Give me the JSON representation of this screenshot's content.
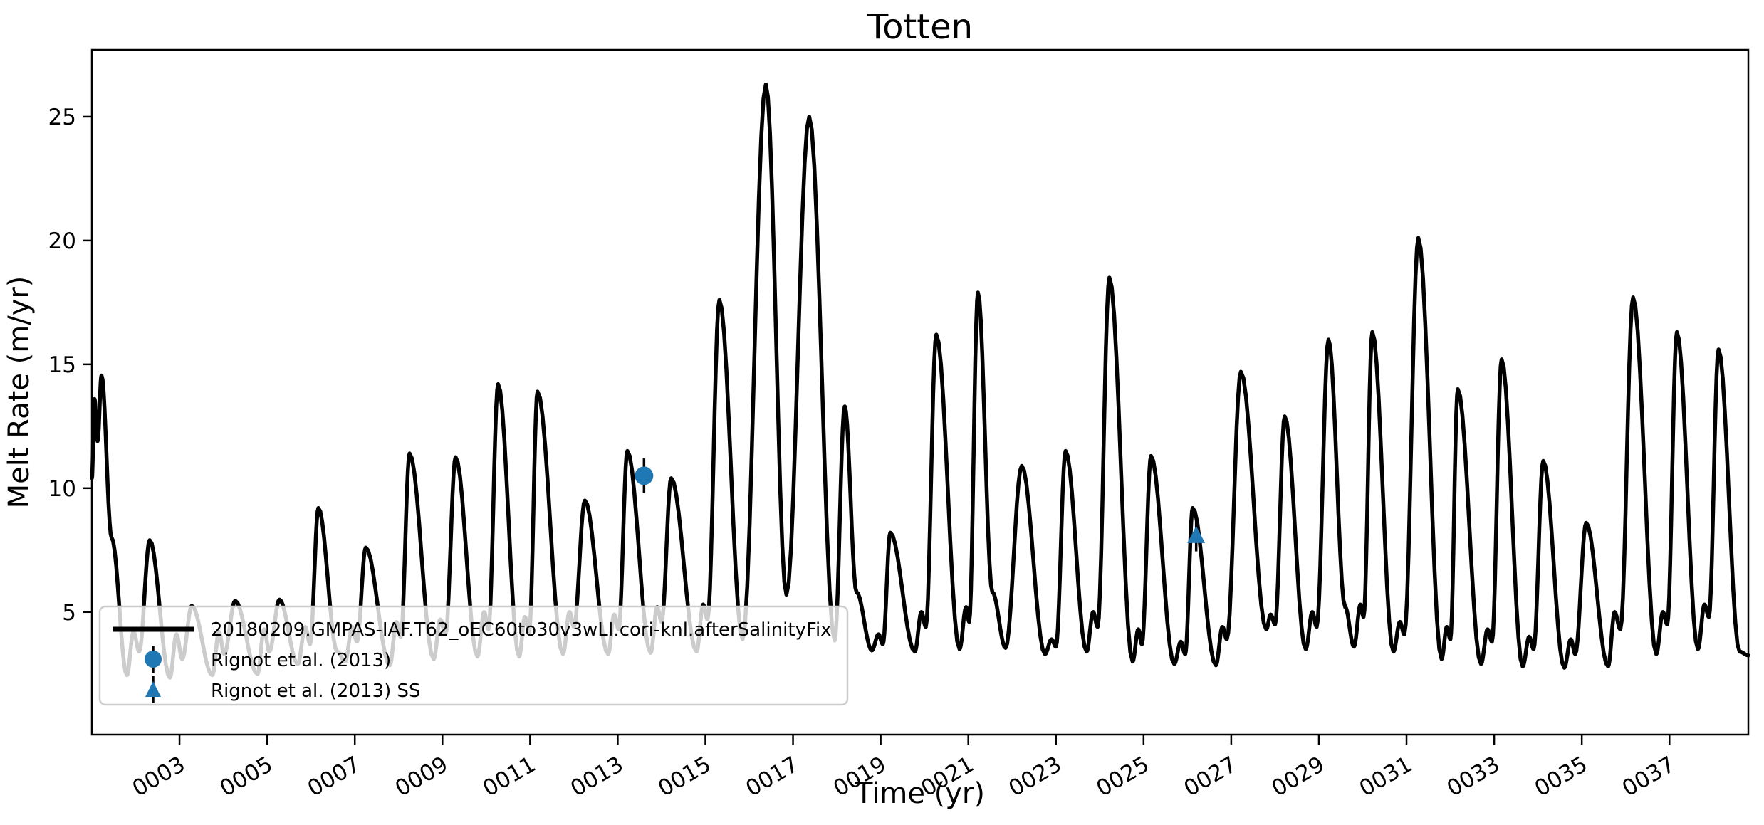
{
  "chart_data": {
    "type": "line",
    "title": "Totten",
    "xlabel": "Time (yr)",
    "ylabel": "Melt Rate (m/yr)",
    "xlim": [
      1.0,
      38.8
    ],
    "ylim": [
      0.05,
      27.7
    ],
    "grid": false,
    "legend_position": "lower left",
    "axis_color": "#000000",
    "x_ticks": [
      {
        "value": 3,
        "label": "0003"
      },
      {
        "value": 5,
        "label": "0005"
      },
      {
        "value": 7,
        "label": "0007"
      },
      {
        "value": 9,
        "label": "0009"
      },
      {
        "value": 11,
        "label": "0011"
      },
      {
        "value": 13,
        "label": "0013"
      },
      {
        "value": 15,
        "label": "0015"
      },
      {
        "value": 17,
        "label": "0017"
      },
      {
        "value": 19,
        "label": "0019"
      },
      {
        "value": 21,
        "label": "0021"
      },
      {
        "value": 23,
        "label": "0023"
      },
      {
        "value": 25,
        "label": "0025"
      },
      {
        "value": 27,
        "label": "0027"
      },
      {
        "value": 29,
        "label": "0029"
      },
      {
        "value": 31,
        "label": "0031"
      },
      {
        "value": 33,
        "label": "0033"
      },
      {
        "value": 35,
        "label": "0035"
      },
      {
        "value": 37,
        "label": "0037"
      }
    ],
    "y_ticks": [
      {
        "value": 5,
        "label": "5"
      },
      {
        "value": 10,
        "label": "10"
      },
      {
        "value": 15,
        "label": "15"
      },
      {
        "value": 20,
        "label": "20"
      },
      {
        "value": 25,
        "label": "25"
      }
    ],
    "series": [
      {
        "name": "20180209.GMPAS-IAF.T62_oEC60to30v3wLI.cori-knl.afterSalinityFix",
        "color": "#000000",
        "line_width": 5.5,
        "annual_peaks_note": "sharp seasonal peaks; [year, melt rate m/yr] keypoints traced from plot",
        "keypoints": [
          [
            1.0,
            10.4
          ],
          [
            1.06,
            13.6
          ],
          [
            1.13,
            11.9
          ],
          [
            1.22,
            14.55
          ],
          [
            1.45,
            8.0
          ],
          [
            1.8,
            2.45
          ],
          [
            1.95,
            4.2
          ],
          [
            2.08,
            3.4
          ],
          [
            2.32,
            7.9
          ],
          [
            2.78,
            2.35
          ],
          [
            2.93,
            4.1
          ],
          [
            3.06,
            3.1
          ],
          [
            3.28,
            5.25
          ],
          [
            3.75,
            2.45
          ],
          [
            3.9,
            4.2
          ],
          [
            4.02,
            3.3
          ],
          [
            4.27,
            5.45
          ],
          [
            4.78,
            2.5
          ],
          [
            4.93,
            4.3
          ],
          [
            5.05,
            3.4
          ],
          [
            5.28,
            5.5
          ],
          [
            5.7,
            2.9
          ],
          [
            5.87,
            4.4
          ],
          [
            5.98,
            3.7
          ],
          [
            6.17,
            9.2
          ],
          [
            6.6,
            3.4
          ],
          [
            6.78,
            3.0
          ],
          [
            6.94,
            4.4
          ],
          [
            7.05,
            3.8
          ],
          [
            7.25,
            7.6
          ],
          [
            7.8,
            2.85
          ],
          [
            7.95,
            4.6
          ],
          [
            8.05,
            4.0
          ],
          [
            8.25,
            11.4
          ],
          [
            8.8,
            3.1
          ],
          [
            8.95,
            4.7
          ],
          [
            9.07,
            4.1
          ],
          [
            9.3,
            11.25
          ],
          [
            9.8,
            3.2
          ],
          [
            9.95,
            5.0
          ],
          [
            10.05,
            4.3
          ],
          [
            10.27,
            14.2
          ],
          [
            10.75,
            3.2
          ],
          [
            10.88,
            4.8
          ],
          [
            10.98,
            4.2
          ],
          [
            11.17,
            13.9
          ],
          [
            11.75,
            3.3
          ],
          [
            11.9,
            5.0
          ],
          [
            12.0,
            4.4
          ],
          [
            12.25,
            9.5
          ],
          [
            12.78,
            3.3
          ],
          [
            12.92,
            4.9
          ],
          [
            13.02,
            4.3
          ],
          [
            13.22,
            11.5
          ],
          [
            13.75,
            3.35
          ],
          [
            13.9,
            5.2
          ],
          [
            14.0,
            4.6
          ],
          [
            14.22,
            10.4
          ],
          [
            14.8,
            3.4
          ],
          [
            14.95,
            5.3
          ],
          [
            15.05,
            4.7
          ],
          [
            15.32,
            17.6
          ],
          [
            15.85,
            3.9
          ],
          [
            16.38,
            26.3
          ],
          [
            16.85,
            5.7
          ],
          [
            17.37,
            25.0
          ],
          [
            17.95,
            3.85
          ],
          [
            18.18,
            13.3
          ],
          [
            18.45,
            5.8
          ],
          [
            18.8,
            3.45
          ],
          [
            18.95,
            4.1
          ],
          [
            19.05,
            3.7
          ],
          [
            19.22,
            8.2
          ],
          [
            19.78,
            3.4
          ],
          [
            19.93,
            5.0
          ],
          [
            20.03,
            4.4
          ],
          [
            20.27,
            16.2
          ],
          [
            20.8,
            3.5
          ],
          [
            20.95,
            5.2
          ],
          [
            21.02,
            4.6
          ],
          [
            21.22,
            17.9
          ],
          [
            21.55,
            5.8
          ],
          [
            21.85,
            3.55
          ],
          [
            22.22,
            10.9
          ],
          [
            22.75,
            3.3
          ],
          [
            22.9,
            3.9
          ],
          [
            23.0,
            3.6
          ],
          [
            23.22,
            11.5
          ],
          [
            23.7,
            3.4
          ],
          [
            23.85,
            5.0
          ],
          [
            23.95,
            4.4
          ],
          [
            24.22,
            18.5
          ],
          [
            24.75,
            3.0
          ],
          [
            24.88,
            4.3
          ],
          [
            24.96,
            3.7
          ],
          [
            25.17,
            11.3
          ],
          [
            25.7,
            2.9
          ],
          [
            25.85,
            3.8
          ],
          [
            25.95,
            3.3
          ],
          [
            26.12,
            9.2
          ],
          [
            26.65,
            2.85
          ],
          [
            26.8,
            4.4
          ],
          [
            26.9,
            3.9
          ],
          [
            27.22,
            14.7
          ],
          [
            27.8,
            4.3
          ],
          [
            27.9,
            4.9
          ],
          [
            28.0,
            4.5
          ],
          [
            28.22,
            12.9
          ],
          [
            28.7,
            3.5
          ],
          [
            28.85,
            5.0
          ],
          [
            28.95,
            4.4
          ],
          [
            29.22,
            16.0
          ],
          [
            29.6,
            5.2
          ],
          [
            29.8,
            3.6
          ],
          [
            29.95,
            5.3
          ],
          [
            30.02,
            4.8
          ],
          [
            30.22,
            16.3
          ],
          [
            30.7,
            3.4
          ],
          [
            30.85,
            4.6
          ],
          [
            30.95,
            4.1
          ],
          [
            31.27,
            20.1
          ],
          [
            31.8,
            3.1
          ],
          [
            31.92,
            4.4
          ],
          [
            32.0,
            3.9
          ],
          [
            32.17,
            14.0
          ],
          [
            32.7,
            2.9
          ],
          [
            32.85,
            4.3
          ],
          [
            32.95,
            3.8
          ],
          [
            33.17,
            15.2
          ],
          [
            33.65,
            2.8
          ],
          [
            33.8,
            4.0
          ],
          [
            33.9,
            3.5
          ],
          [
            34.12,
            11.1
          ],
          [
            34.6,
            2.75
          ],
          [
            34.75,
            3.9
          ],
          [
            34.85,
            3.3
          ],
          [
            35.1,
            8.6
          ],
          [
            35.6,
            2.8
          ],
          [
            35.75,
            5.0
          ],
          [
            35.88,
            4.3
          ],
          [
            36.17,
            17.7
          ],
          [
            36.7,
            3.3
          ],
          [
            36.85,
            5.0
          ],
          [
            36.95,
            4.5
          ],
          [
            37.17,
            16.3
          ],
          [
            37.65,
            3.5
          ],
          [
            37.8,
            5.3
          ],
          [
            37.9,
            4.8
          ],
          [
            38.12,
            15.6
          ],
          [
            38.6,
            3.4
          ],
          [
            38.8,
            3.25
          ]
        ]
      }
    ],
    "observations": [
      {
        "label": "Rignot et al. (2013)",
        "marker": "circle",
        "color": "#1f77b4",
        "x": 13.6,
        "y": 10.5,
        "yerr": 0.7
      },
      {
        "label": "Rignot et al. (2013) SS",
        "marker": "triangle",
        "color": "#1f77b4",
        "x": 26.2,
        "y": 8.1,
        "yerr": 0.65
      }
    ],
    "legend": {
      "items": [
        {
          "label": "20180209.GMPAS-IAF.T62_oEC60to30v3wLI.cori-knl.afterSalinityFix",
          "marker": "line",
          "color": "#000000"
        },
        {
          "label": "Rignot et al. (2013)",
          "marker": "circle",
          "color": "#1f77b4"
        },
        {
          "label": "Rignot et al. (2013) SS",
          "marker": "triangle",
          "color": "#1f77b4"
        }
      ]
    }
  }
}
